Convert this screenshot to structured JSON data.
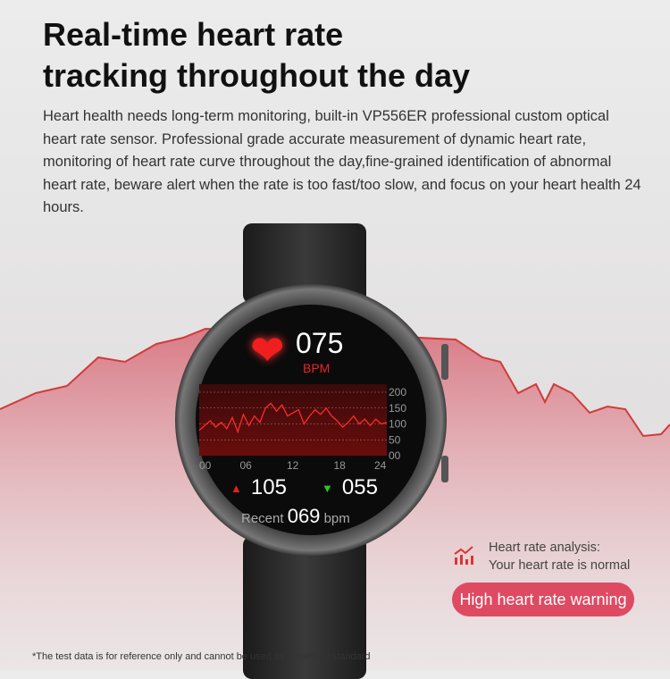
{
  "title_line1": "Real-time heart rate",
  "title_line2": "tracking throughout the day",
  "description": "Heart health needs long-term monitoring, built-in VP556ER professional custom optical heart rate sensor. Professional grade accurate measurement of dynamic heart rate, monitoring of heart rate curve throughout the day,fine-grained identification of abnormal heart rate, beware alert when the rate is too fast/too slow, and focus on your heart health 24 hours.",
  "watch": {
    "heart_rate": "075",
    "unit": "BPM",
    "max": "105",
    "min": "055",
    "recent_label": "Recent",
    "recent_value": "069",
    "recent_unit": "bpm",
    "colors": {
      "accent": "#e82020",
      "up": "#e82020",
      "down": "#22cc22"
    }
  },
  "chart_data": {
    "type": "line",
    "x_ticks": [
      "00",
      "06",
      "12",
      "18",
      "24"
    ],
    "y_ticks": [
      "200",
      "150",
      "100",
      "50",
      "00"
    ],
    "xlim": [
      0,
      24
    ],
    "ylim": [
      0,
      200
    ],
    "grid": true,
    "values": [
      80,
      95,
      110,
      90,
      105,
      85,
      120,
      75,
      130,
      95,
      125,
      105,
      150,
      165,
      140,
      160,
      125,
      135,
      145,
      100,
      125,
      145,
      130,
      150,
      125,
      110,
      90,
      105,
      125,
      100,
      115,
      95,
      115,
      100,
      105
    ]
  },
  "analysis": {
    "line1": "Heart rate analysis:",
    "line2": "Your heart rate is normal",
    "icon": "chart-trend-icon"
  },
  "warning_label": "High heart rate warning",
  "footnote": "*The test data is for reference only and cannot be used as a medical standard"
}
